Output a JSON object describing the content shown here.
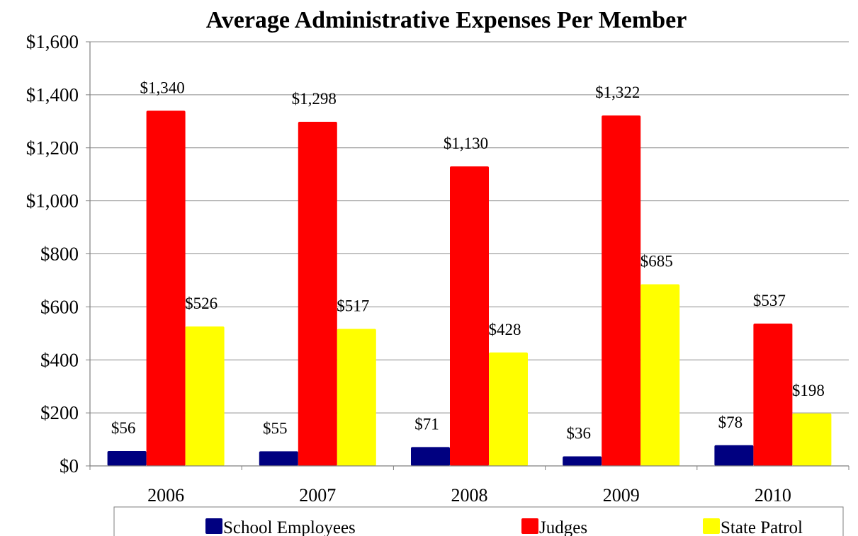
{
  "chart_data": {
    "type": "bar",
    "title": "Average Administrative Expenses Per Member",
    "categories": [
      "2006",
      "2007",
      "2008",
      "2009",
      "2010"
    ],
    "series": [
      {
        "name": "School Employees",
        "color": "#000080",
        "values": [
          56,
          55,
          71,
          36,
          78
        ],
        "labels": [
          "$56",
          "$55",
          "$71",
          "$36",
          "$78"
        ]
      },
      {
        "name": "Judges",
        "color": "#ff0000",
        "values": [
          1340,
          1298,
          1130,
          1322,
          537
        ],
        "labels": [
          "$1,340",
          "$1,298",
          "$1,130",
          "$1,322",
          "$537"
        ]
      },
      {
        "name": "State Patrol",
        "color": "#ffff00",
        "values": [
          526,
          517,
          428,
          685,
          198
        ],
        "labels": [
          "$526",
          "$517",
          "$428",
          "$685",
          "$198"
        ]
      }
    ],
    "ylim": [
      0,
      1600
    ],
    "yticks": [
      0,
      200,
      400,
      600,
      800,
      1000,
      1200,
      1400,
      1600
    ],
    "ytick_labels": [
      "$0",
      "$200",
      "$400",
      "$600",
      "$800",
      "$1,000",
      "$1,200",
      "$1,400",
      "$1,600"
    ],
    "xlabel": "",
    "ylabel": "",
    "grid": true,
    "legend_position": "bottom"
  }
}
